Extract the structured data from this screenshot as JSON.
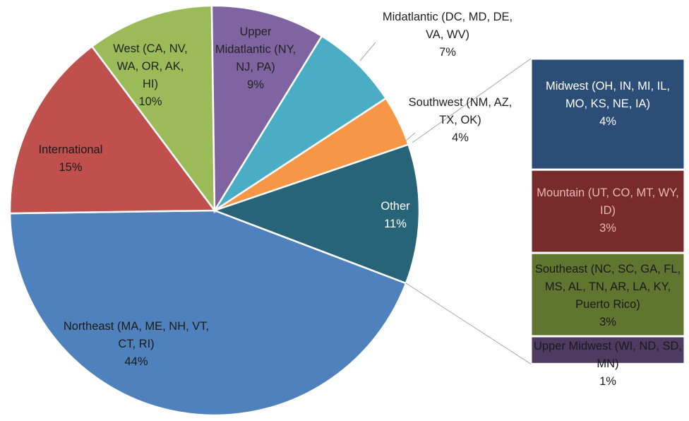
{
  "chart_data": {
    "type": "pie",
    "categories": [
      "Northeast (MA, ME, NH, VT, CT, RI)",
      "International",
      "West (CA, NV, WA, OR, AK, HI)",
      "Upper Midatlantic (NY, NJ, PA)",
      "Midatlantic (DC, MD, DE, VA, WV)",
      "Southwest (NM, AZ, TX, OK)",
      "Other"
    ],
    "values": [
      44,
      15,
      10,
      9,
      7,
      4,
      11
    ],
    "value_labels": [
      "44%",
      "15%",
      "10%",
      "9%",
      "7%",
      "4%",
      "11%"
    ],
    "colors": [
      "#4f81bd",
      "#c0504d",
      "#9bbb59",
      "#8064a2",
      "#4bacc6",
      "#f79646",
      "#276478"
    ],
    "bar": {
      "categories": [
        "Midwest (OH, IN, MI, IL, MO, KS, NE, IA)",
        "Mountain (UT, CO, MT, WY, ID)",
        "Southeast (NC, SC, GA, FL, MS, AL, TN, AR, LA, KY, Puerto Rico)",
        "Upper Midwest (WI, ND, SD, MN)"
      ],
      "values": [
        4,
        3,
        3,
        1
      ],
      "value_labels": [
        "4%",
        "3%",
        "3%",
        "1%"
      ],
      "colors": [
        "#2c4d75",
        "#772c2a",
        "#5f7530",
        "#4d3b62"
      ]
    }
  }
}
